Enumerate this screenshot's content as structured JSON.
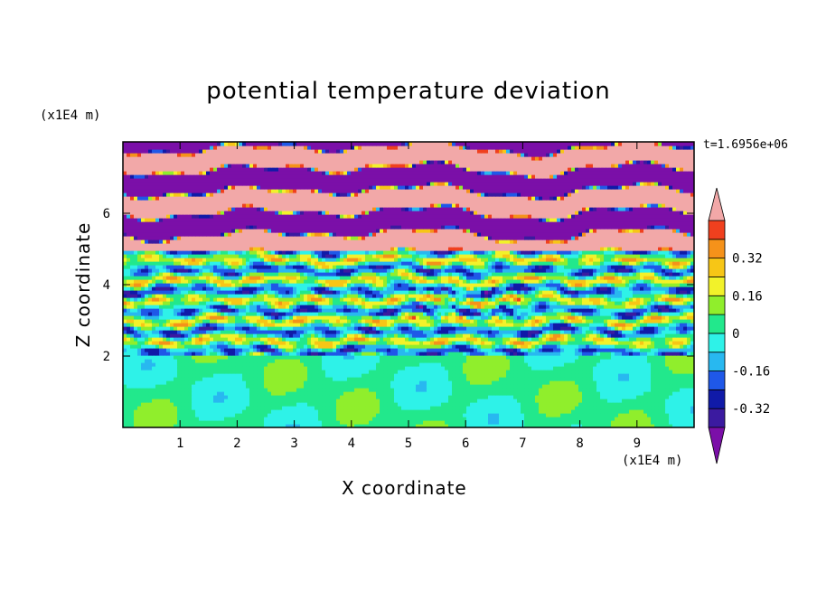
{
  "chart_data": {
    "type": "heatmap",
    "title": "potential temperature deviation",
    "xlabel": "X coordinate",
    "ylabel": "Z coordinate",
    "x_unit": "(x1E4 m)",
    "y_unit": "(x1E4 m)",
    "time_label": "t=1.6956e+06",
    "xlim": [
      0,
      10
    ],
    "ylim": [
      0,
      8
    ],
    "x_ticks": [
      "1",
      "2",
      "3",
      "4",
      "5",
      "6",
      "7",
      "8",
      "9"
    ],
    "y_ticks": [
      "2",
      "4",
      "6"
    ],
    "colorbar": {
      "levels": [
        -0.48,
        -0.4,
        -0.32,
        -0.24,
        -0.16,
        -0.08,
        0,
        0.08,
        0.16,
        0.24,
        0.32,
        0.4,
        0.48
      ],
      "colors": [
        "#7b0fa8",
        "#3b1aa0",
        "#101aa8",
        "#1f58e8",
        "#28b8f0",
        "#2ef2e8",
        "#22e88c",
        "#90ee2c",
        "#f2f22a",
        "#f7c616",
        "#f5921a",
        "#f0401e",
        "#f2a8a8"
      ],
      "labels": [
        "0.32",
        "0.16",
        "0",
        "-0.16",
        "-0.32"
      ],
      "extend": "both"
    },
    "layers": [
      {
        "zmin": 0.0,
        "zmax": 2.0,
        "pattern": "uniform near-zero anomaly, green and light green"
      },
      {
        "zmin": 2.0,
        "zmax": 5.0,
        "pattern": "wavy mixed anomalies about -0.3 to +0.35"
      },
      {
        "zmin": 5.0,
        "zmax": 8.0,
        "pattern": "alternating bands near +0.48 and -0.48"
      }
    ]
  }
}
